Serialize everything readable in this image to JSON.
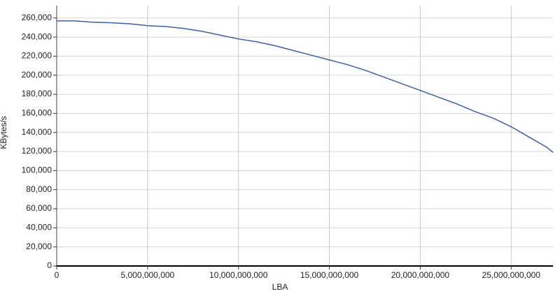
{
  "chart_data": {
    "type": "line",
    "x_label": "LBA",
    "y_label": "KBytes/s",
    "x": [
      0,
      1000000000,
      2000000000,
      3000000000,
      4000000000,
      5000000000,
      6000000000,
      7000000000,
      8000000000,
      9000000000,
      10000000000,
      11000000000,
      12000000000,
      13000000000,
      14000000000,
      15000000000,
      16000000000,
      17000000000,
      18000000000,
      19000000000,
      20000000000,
      21000000000,
      22000000000,
      23000000000,
      24000000000,
      25000000000,
      26000000000,
      27000000000,
      27300000000
    ],
    "series": [
      {
        "name": "KBytes/s",
        "color": "#3f5fa0",
        "values": [
          257000,
          257000,
          255500,
          255000,
          254000,
          252000,
          251000,
          249000,
          246000,
          242000,
          238000,
          235000,
          231000,
          226000,
          221000,
          216000,
          211000,
          205000,
          198000,
          191000,
          184000,
          177000,
          170000,
          162000,
          155000,
          146000,
          135000,
          124000,
          119000
        ]
      }
    ],
    "xlim": [
      0,
      27300000000
    ],
    "xticks": [
      0,
      {
        "value": 5000000000,
        "label": "5,000,000,000"
      },
      {
        "value": 10000000000,
        "label": "10,000,000,000"
      },
      {
        "value": 15000000000,
        "label": "15,000,000,000"
      },
      {
        "value": 20000000000,
        "label": "20,000,000,000"
      },
      {
        "value": 25000000000,
        "label": "25,000,000,000"
      }
    ],
    "ylim": [
      0,
      273000
    ],
    "yticks": [
      0,
      {
        "value": 20000,
        "label": "20,000"
      },
      {
        "value": 40000,
        "label": "40,000"
      },
      {
        "value": 60000,
        "label": "60,000"
      },
      {
        "value": 80000,
        "label": "80,000"
      },
      {
        "value": 100000,
        "label": "100,000"
      },
      {
        "value": 120000,
        "label": "120,000"
      },
      {
        "value": 140000,
        "label": "140,000"
      },
      {
        "value": 160000,
        "label": "160,000"
      },
      {
        "value": 180000,
        "label": "180,000"
      },
      {
        "value": 200000,
        "label": "200,000"
      },
      {
        "value": 220000,
        "label": "220,000"
      },
      {
        "value": 240000,
        "label": "240,000"
      },
      {
        "value": 260000,
        "label": "260,000"
      }
    ],
    "grid": true
  }
}
